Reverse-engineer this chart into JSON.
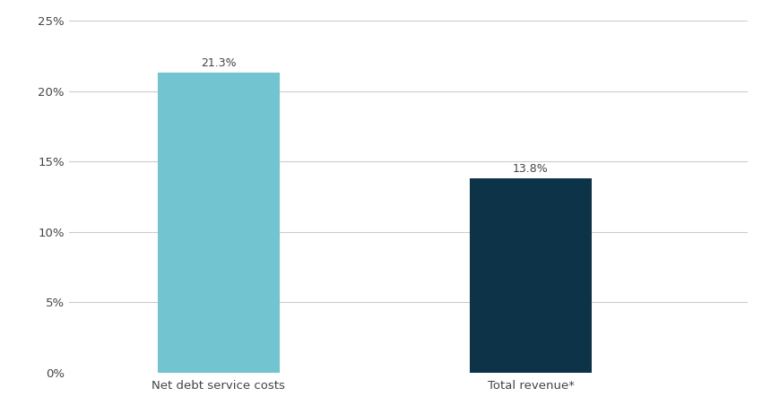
{
  "categories": [
    "Net debt service costs",
    "Total revenue*"
  ],
  "values": [
    21.3,
    13.8
  ],
  "bar_colors": [
    "#72C5D0",
    "#0D3349"
  ],
  "bar_width": 0.18,
  "x_positions": [
    0.22,
    0.68
  ],
  "xlim": [
    0.0,
    1.0
  ],
  "ylim": [
    0,
    25
  ],
  "yticks": [
    0,
    5,
    10,
    15,
    20,
    25
  ],
  "ytick_labels": [
    "0%",
    "5%",
    "10%",
    "15%",
    "20%",
    "25%"
  ],
  "value_labels": [
    "21.3%",
    "13.8%"
  ],
  "background_color": "#ffffff",
  "grid_color": "#cccccc",
  "label_fontsize": 9.5,
  "tick_fontsize": 9.5,
  "value_label_fontsize": 9,
  "text_color": "#444444"
}
